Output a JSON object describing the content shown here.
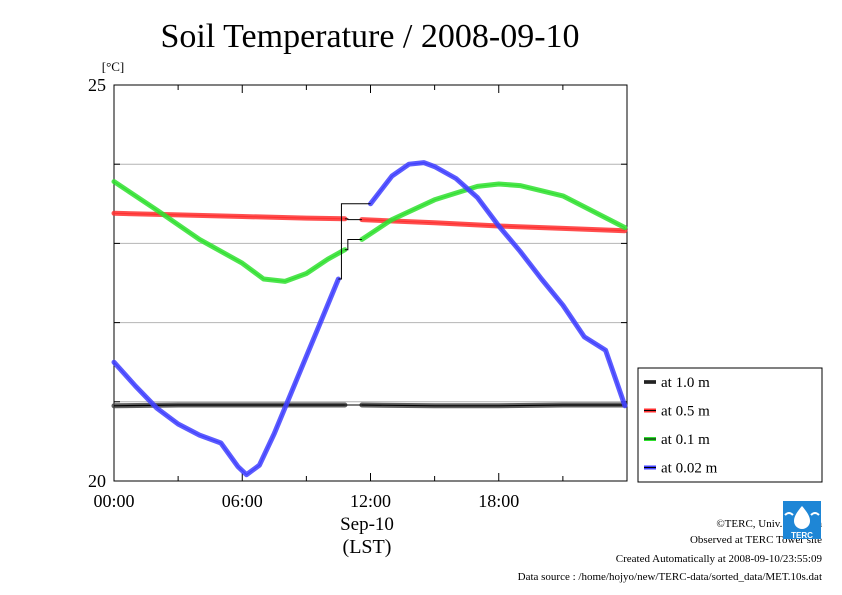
{
  "chart_data": {
    "type": "line",
    "title": "Soil Temperature / 2008-09-10",
    "ylabel": "[°C]",
    "xlabel_date": "Sep-10",
    "xlabel_unit": "(LST)",
    "xlim": [
      0,
      24
    ],
    "ylim": [
      20,
      25
    ],
    "x_tick_labels": [
      "00:00",
      "06:00",
      "12:00",
      "18:00"
    ],
    "y_tick_labels": [
      "20",
      "25"
    ],
    "grid": "horizontal",
    "legend_position": "right",
    "series": [
      {
        "name": "at 1.0 m",
        "color": "#444444",
        "points": [
          [
            0,
            20.95
          ],
          [
            3,
            20.96
          ],
          [
            6,
            20.96
          ],
          [
            9,
            20.96
          ],
          [
            10.8,
            20.96
          ],
          [
            11.6,
            20.96
          ],
          [
            15,
            20.95
          ],
          [
            18,
            20.95
          ],
          [
            21,
            20.96
          ],
          [
            23.9,
            20.96
          ]
        ]
      },
      {
        "name": "at 0.5 m",
        "color": "#ff3030",
        "points": [
          [
            0,
            23.38
          ],
          [
            3,
            23.36
          ],
          [
            6,
            23.34
          ],
          [
            9,
            23.32
          ],
          [
            10.8,
            23.31
          ],
          [
            11.6,
            23.3
          ],
          [
            15,
            23.26
          ],
          [
            18,
            23.22
          ],
          [
            21,
            23.19
          ],
          [
            23.9,
            23.16
          ]
        ]
      },
      {
        "name": "at 0.1 m",
        "color": "#30e030",
        "points": [
          [
            0,
            23.78
          ],
          [
            2,
            23.42
          ],
          [
            4,
            23.05
          ],
          [
            6,
            22.75
          ],
          [
            7,
            22.55
          ],
          [
            8,
            22.52
          ],
          [
            9,
            22.62
          ],
          [
            10,
            22.8
          ],
          [
            10.8,
            22.92
          ],
          [
            11.6,
            23.05
          ],
          [
            13,
            23.3
          ],
          [
            15,
            23.55
          ],
          [
            17,
            23.72
          ],
          [
            18,
            23.75
          ],
          [
            19,
            23.73
          ],
          [
            21,
            23.6
          ],
          [
            23.9,
            23.2
          ]
        ]
      },
      {
        "name": "at 0.02 m",
        "color": "#4040ff",
        "points": [
          [
            0,
            21.5
          ],
          [
            1,
            21.2
          ],
          [
            2,
            20.92
          ],
          [
            3,
            20.72
          ],
          [
            4,
            20.58
          ],
          [
            5,
            20.48
          ],
          [
            5.8,
            20.18
          ],
          [
            6.2,
            20.08
          ],
          [
            6.8,
            20.2
          ],
          [
            7.5,
            20.6
          ],
          [
            8.5,
            21.25
          ],
          [
            9.5,
            21.9
          ],
          [
            10.5,
            22.55
          ],
          [
            11.4,
            23.12
          ],
          [
            12,
            23.5
          ],
          [
            13,
            23.85
          ],
          [
            13.8,
            24.0
          ],
          [
            14.5,
            24.02
          ],
          [
            15,
            23.97
          ],
          [
            16,
            23.82
          ],
          [
            17,
            23.58
          ],
          [
            18,
            23.22
          ],
          [
            19,
            22.9
          ],
          [
            20,
            22.55
          ],
          [
            21,
            22.22
          ],
          [
            22,
            21.82
          ],
          [
            23,
            21.65
          ],
          [
            23.9,
            20.95
          ]
        ]
      }
    ],
    "gaps": [
      [
        10.8,
        11.6
      ]
    ]
  },
  "credits": {
    "line1": "©TERC, Univ. Tsukuba",
    "line2": "Observed at TERC Tower site",
    "line3": "Created Automatically at 2008-09-10/23:55:09",
    "line4": "Data source : /home/hojyo/new/TERC-data/sorted_data/MET.10s.dat",
    "logo_text": "TERC"
  }
}
